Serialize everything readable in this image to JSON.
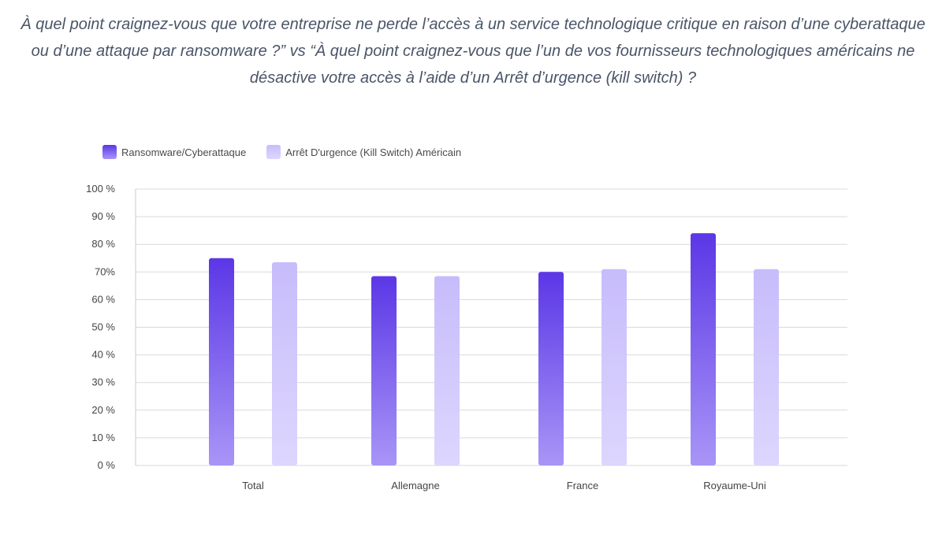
{
  "page": {
    "title": "À quel point craignez-vous que votre entreprise ne perde l’accès à un service technologique critique en raison d’une cyberattaque ou d’une attaque par ransomware ?” vs “À quel point craignez-vous que l’un de vos fournisseurs technologiques américains ne désactive votre accès à l’aide d’un Arrêt d’urgence (kill switch) ?"
  },
  "chart_data": {
    "type": "bar",
    "categories": [
      "Total",
      "Allemagne",
      "France",
      "Royaume-Uni"
    ],
    "series": [
      {
        "name": "Ransomware/Cyberattaque",
        "values": [
          75,
          68.5,
          70,
          84
        ],
        "color_top": "#5b37e6",
        "color_bottom": "#a995f7"
      },
      {
        "name": "Arrêt D'urgence (Kill Switch) Américain",
        "values": [
          73.5,
          68.5,
          71,
          71
        ],
        "color_top": "#c7bcfb",
        "color_bottom": "#ddd6fe"
      }
    ],
    "ylim": [
      0,
      100
    ],
    "yticks": [
      0,
      10,
      20,
      30,
      40,
      50,
      60,
      70,
      80,
      90,
      100
    ],
    "ytick_labels": [
      "0 %",
      "10 %",
      "20 %",
      "30 %",
      "40 %",
      "50 %",
      "60 %",
      "70%",
      "80 %",
      "90 %",
      "100 %"
    ],
    "xlabel": "",
    "ylabel": "",
    "grid": true,
    "legend_position": "top-left"
  }
}
